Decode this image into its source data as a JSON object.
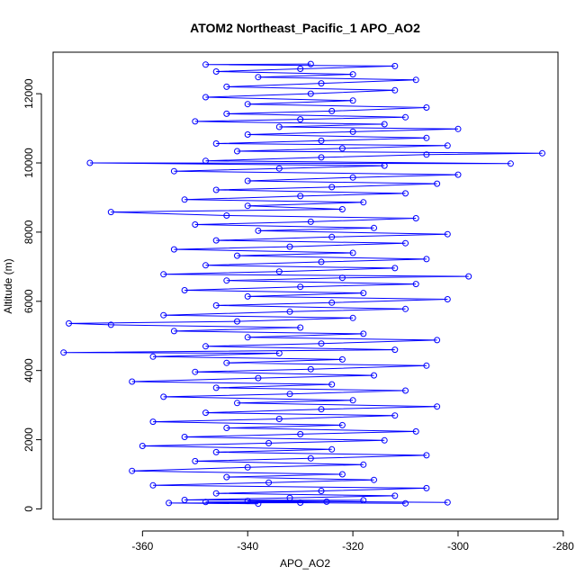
{
  "chart_data": {
    "type": "scatter",
    "title": "ATOM2 Northeast_Pacific_1 APO_AO2",
    "xlabel": "APO_AO2",
    "ylabel": "Altitude (m)",
    "xlim": [
      -377,
      -281
    ],
    "ylim": [
      -300,
      13200
    ],
    "x_ticks": [
      -360,
      -340,
      -320,
      -300,
      -280
    ],
    "y_ticks": [
      0,
      2000,
      4000,
      6000,
      8000,
      10000,
      12000
    ],
    "grid": false,
    "legend": "none",
    "color": "#0000ff",
    "marker": "open-circle",
    "connected_by_lines": true,
    "series": [
      {
        "points": [
          [
            -338,
            150
          ],
          [
            -355,
            170
          ],
          [
            -330,
            180
          ],
          [
            -310,
            160
          ],
          [
            -348,
            200
          ],
          [
            -325,
            210
          ],
          [
            -302,
            190
          ],
          [
            -340,
            230
          ],
          [
            -318,
            250
          ],
          [
            -352,
            260
          ],
          [
            -332,
            320
          ],
          [
            -312,
            380
          ],
          [
            -346,
            450
          ],
          [
            -326,
            520
          ],
          [
            -306,
            600
          ],
          [
            -358,
            680
          ],
          [
            -336,
            760
          ],
          [
            -316,
            840
          ],
          [
            -344,
            920
          ],
          [
            -322,
            1000
          ],
          [
            -362,
            1100
          ],
          [
            -340,
            1200
          ],
          [
            -318,
            1280
          ],
          [
            -350,
            1380
          ],
          [
            -328,
            1460
          ],
          [
            -306,
            1550
          ],
          [
            -346,
            1640
          ],
          [
            -324,
            1720
          ],
          [
            -360,
            1820
          ],
          [
            -336,
            1900
          ],
          [
            -314,
            1980
          ],
          [
            -352,
            2080
          ],
          [
            -330,
            2160
          ],
          [
            -308,
            2240
          ],
          [
            -344,
            2340
          ],
          [
            -322,
            2420
          ],
          [
            -358,
            2520
          ],
          [
            -334,
            2600
          ],
          [
            -312,
            2700
          ],
          [
            -348,
            2780
          ],
          [
            -326,
            2880
          ],
          [
            -304,
            2960
          ],
          [
            -342,
            3060
          ],
          [
            -320,
            3140
          ],
          [
            -356,
            3240
          ],
          [
            -332,
            3320
          ],
          [
            -310,
            3420
          ],
          [
            -346,
            3500
          ],
          [
            -324,
            3600
          ],
          [
            -362,
            3680
          ],
          [
            -338,
            3780
          ],
          [
            -316,
            3860
          ],
          [
            -350,
            3960
          ],
          [
            -328,
            4040
          ],
          [
            -306,
            4140
          ],
          [
            -344,
            4220
          ],
          [
            -322,
            4320
          ],
          [
            -358,
            4400
          ],
          [
            -334,
            4500
          ],
          [
            -375,
            4520
          ],
          [
            -312,
            4600
          ],
          [
            -348,
            4700
          ],
          [
            -326,
            4780
          ],
          [
            -304,
            4880
          ],
          [
            -340,
            4960
          ],
          [
            -318,
            5060
          ],
          [
            -354,
            5140
          ],
          [
            -330,
            5240
          ],
          [
            -366,
            5320
          ],
          [
            -374,
            5360
          ],
          [
            -342,
            5420
          ],
          [
            -320,
            5520
          ],
          [
            -356,
            5600
          ],
          [
            -332,
            5700
          ],
          [
            -310,
            5780
          ],
          [
            -346,
            5880
          ],
          [
            -324,
            5960
          ],
          [
            -302,
            6060
          ],
          [
            -340,
            6140
          ],
          [
            -318,
            6240
          ],
          [
            -352,
            6320
          ],
          [
            -330,
            6420
          ],
          [
            -308,
            6500
          ],
          [
            -344,
            6600
          ],
          [
            -322,
            6680
          ],
          [
            -298,
            6720
          ],
          [
            -356,
            6780
          ],
          [
            -334,
            6860
          ],
          [
            -312,
            6960
          ],
          [
            -348,
            7040
          ],
          [
            -326,
            7140
          ],
          [
            -306,
            7220
          ],
          [
            -342,
            7320
          ],
          [
            -320,
            7400
          ],
          [
            -354,
            7500
          ],
          [
            -332,
            7580
          ],
          [
            -310,
            7680
          ],
          [
            -346,
            7760
          ],
          [
            -324,
            7860
          ],
          [
            -302,
            7940
          ],
          [
            -338,
            8040
          ],
          [
            -316,
            8120
          ],
          [
            -350,
            8220
          ],
          [
            -328,
            8300
          ],
          [
            -308,
            8400
          ],
          [
            -344,
            8480
          ],
          [
            -366,
            8580
          ],
          [
            -322,
            8660
          ],
          [
            -340,
            8760
          ],
          [
            -318,
            8860
          ],
          [
            -352,
            8940
          ],
          [
            -330,
            9040
          ],
          [
            -310,
            9120
          ],
          [
            -346,
            9220
          ],
          [
            -324,
            9300
          ],
          [
            -304,
            9400
          ],
          [
            -340,
            9480
          ],
          [
            -320,
            9580
          ],
          [
            -300,
            9660
          ],
          [
            -354,
            9760
          ],
          [
            -334,
            9840
          ],
          [
            -314,
            9920
          ],
          [
            -370,
            10000
          ],
          [
            -290,
            9980
          ],
          [
            -348,
            10060
          ],
          [
            -326,
            10160
          ],
          [
            -306,
            10240
          ],
          [
            -284,
            10280
          ],
          [
            -342,
            10340
          ],
          [
            -322,
            10420
          ],
          [
            -302,
            10500
          ],
          [
            -346,
            10560
          ],
          [
            -326,
            10640
          ],
          [
            -306,
            10720
          ],
          [
            -340,
            10820
          ],
          [
            -320,
            10900
          ],
          [
            -300,
            10980
          ],
          [
            -334,
            11040
          ],
          [
            -314,
            11120
          ],
          [
            -350,
            11200
          ],
          [
            -330,
            11260
          ],
          [
            -310,
            11320
          ],
          [
            -344,
            11420
          ],
          [
            -324,
            11500
          ],
          [
            -306,
            11600
          ],
          [
            -340,
            11700
          ],
          [
            -320,
            11800
          ],
          [
            -348,
            11900
          ],
          [
            -328,
            12000
          ],
          [
            -312,
            12100
          ],
          [
            -344,
            12200
          ],
          [
            -326,
            12300
          ],
          [
            -308,
            12400
          ],
          [
            -338,
            12480
          ],
          [
            -320,
            12560
          ],
          [
            -346,
            12640
          ],
          [
            -330,
            12720
          ],
          [
            -312,
            12800
          ],
          [
            -348,
            12840
          ],
          [
            -328,
            12860
          ]
        ]
      }
    ]
  }
}
